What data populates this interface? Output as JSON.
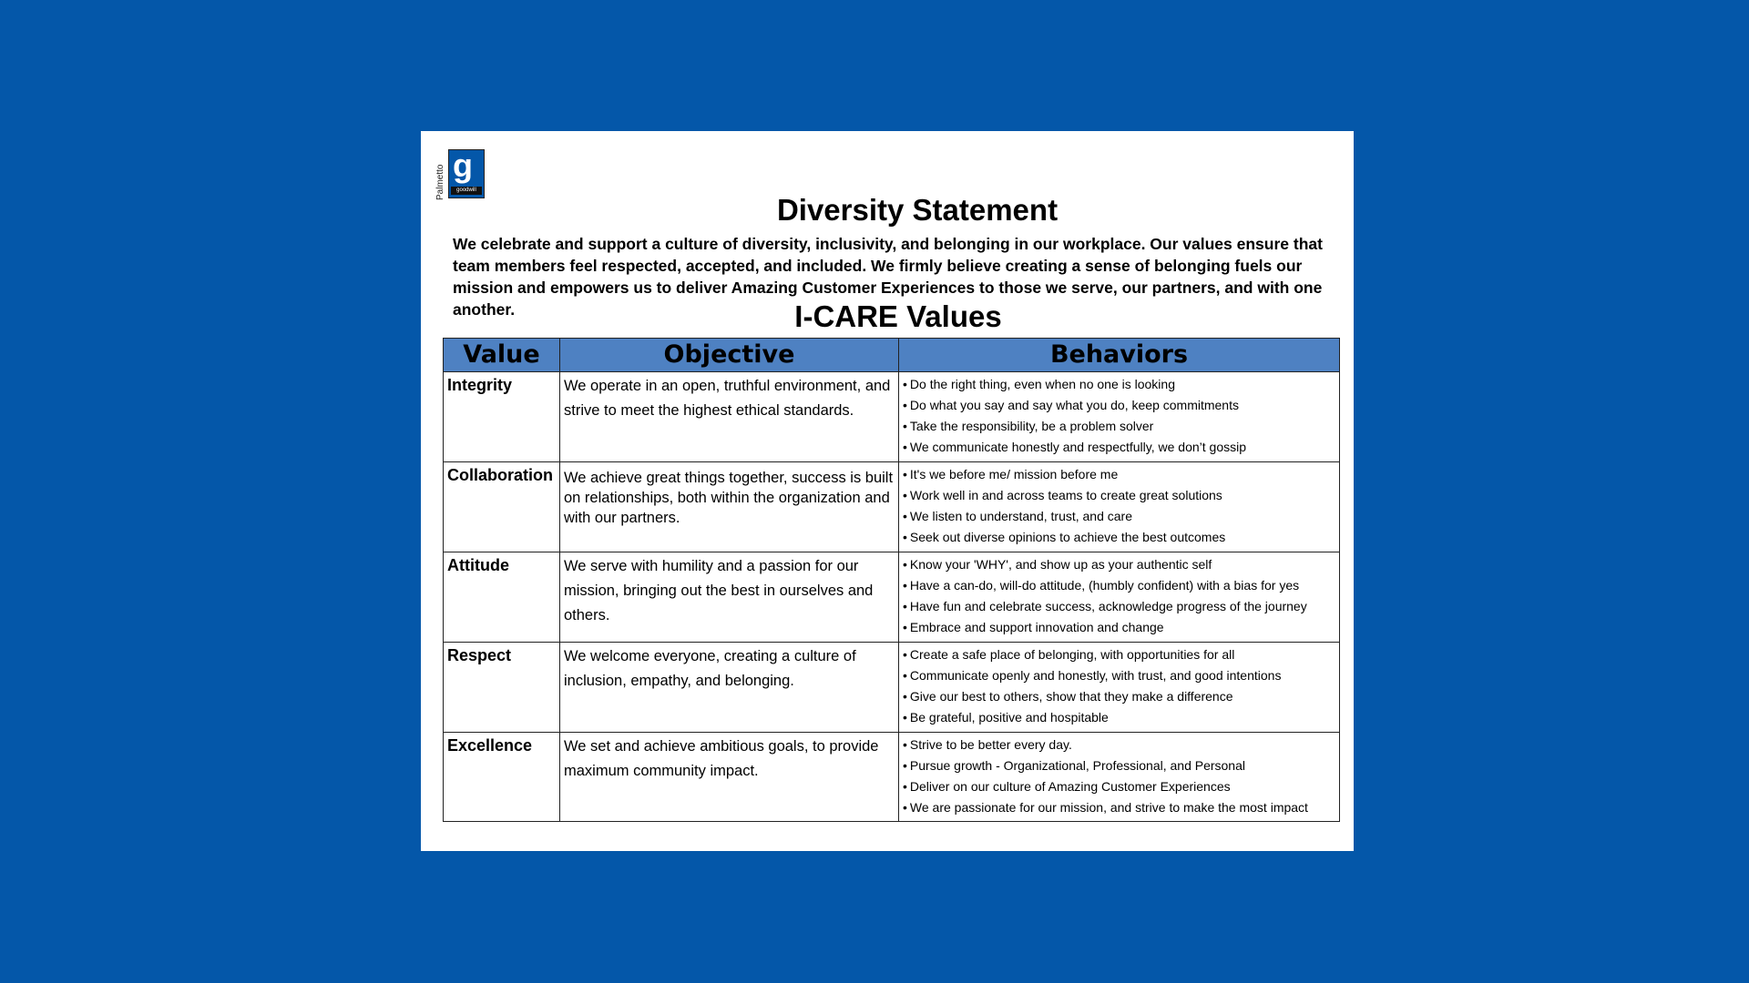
{
  "logo": {
    "side_text": "Palmetto",
    "word": "goodwill",
    "letter": "g"
  },
  "title": "Diversity Statement",
  "intro": "We celebrate and support a culture of diversity, inclusivity, and belonging in our workplace.  Our values ensure that team members feel respected, accepted, and included.  We firmly believe creating a sense of belonging fuels our mission and empowers us to deliver Amazing Customer Experiences to those we serve, our partners, and with one another.",
  "subtitle": "I-CARE Values",
  "table": {
    "headers": [
      "Value",
      "Objective",
      "Behaviors"
    ],
    "rows": [
      {
        "value": "Integrity",
        "objective": "We operate in an open, truthful environment, and strive to meet the highest ethical standards.",
        "behaviors": [
          "Do the right thing, even when no one is looking",
          "Do what you say and say what you do, keep commitments",
          "Take the responsibility, be a problem solver",
          "We communicate honestly and respectfully, we don’t gossip"
        ]
      },
      {
        "value": "Collaboration",
        "objective": "We achieve great things together, success is built on relationships, both within the organization and with our partners.",
        "behaviors": [
          "It's we before me/ mission before me",
          "Work well in and across teams to create great solutions",
          "We listen to understand, trust, and care",
          "Seek out diverse opinions to achieve the best outcomes"
        ]
      },
      {
        "value": "Attitude",
        "objective": "We serve with humility and a passion for our mission, bringing out the best in ourselves and others.",
        "behaviors": [
          "Know your 'WHY', and show up as your authentic self",
          "Have a can-do, will-do attitude, (humbly confident) with a bias for yes",
          "Have fun and celebrate success, acknowledge progress of the journey",
          "Embrace and support innovation and change"
        ]
      },
      {
        "value": "Respect",
        "objective": "We welcome everyone, creating a culture of inclusion, empathy, and belonging.",
        "behaviors": [
          "Create a safe place of belonging, with opportunities for all",
          "Communicate openly and honestly, with trust, and good intentions",
          "Give our best to others, show that they make a difference",
          "Be grateful, positive and hospitable"
        ]
      },
      {
        "value": "Excellence",
        "objective": "We set and achieve ambitious goals, to provide maximum community impact.",
        "behaviors": [
          "Strive to be better every day.",
          "Pursue growth - Organizational, Professional, and Personal",
          "Deliver on our culture of Amazing Customer Experiences",
          "We are passionate for our mission, and strive to make the most impact"
        ]
      }
    ]
  },
  "colors": {
    "background": "#0457a9",
    "header_fill": "#4e81c2",
    "page": "#ffffff"
  }
}
